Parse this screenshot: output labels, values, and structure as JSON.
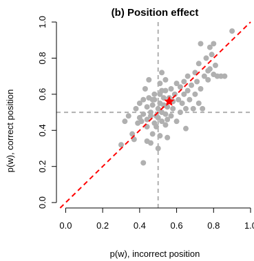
{
  "chart_data": {
    "type": "scatter",
    "title": "(b) Position effect",
    "xlabel": "p(w), incorrect position",
    "ylabel": "p(w), correct position",
    "xlim": [
      -0.05,
      1.0
    ],
    "ylim": [
      -0.03,
      1.0
    ],
    "xticks": [
      0.0,
      0.2,
      0.4,
      0.6,
      0.8,
      1.0
    ],
    "yticks": [
      0.0,
      0.2,
      0.4,
      0.6,
      0.8,
      1.0
    ],
    "xtick_labels": [
      "0.0",
      "0.2",
      "0.4",
      "0.6",
      "0.8",
      "1.0"
    ],
    "ytick_labels": [
      "0.0",
      "0.2",
      "0.4",
      "0.6",
      "0.8",
      "1.0"
    ],
    "grid": false,
    "reference_lines": {
      "identity_color": "#ff0000",
      "vertical_x": 0.5,
      "horizontal_y": 0.5,
      "guide_color": "#b0b0b0"
    },
    "mean_point": {
      "x": 0.56,
      "y": 0.56,
      "color": "#ff0000"
    },
    "point_color": "#b0b0b0",
    "points": [
      [
        0.3,
        0.32
      ],
      [
        0.32,
        0.45
      ],
      [
        0.34,
        0.48
      ],
      [
        0.36,
        0.38
      ],
      [
        0.37,
        0.35
      ],
      [
        0.38,
        0.52
      ],
      [
        0.39,
        0.44
      ],
      [
        0.4,
        0.47
      ],
      [
        0.4,
        0.55
      ],
      [
        0.41,
        0.45
      ],
      [
        0.42,
        0.22
      ],
      [
        0.42,
        0.49
      ],
      [
        0.42,
        0.57
      ],
      [
        0.43,
        0.63
      ],
      [
        0.44,
        0.34
      ],
      [
        0.44,
        0.42
      ],
      [
        0.44,
        0.46
      ],
      [
        0.44,
        0.53
      ],
      [
        0.45,
        0.58
      ],
      [
        0.45,
        0.68
      ],
      [
        0.46,
        0.33
      ],
      [
        0.46,
        0.48
      ],
      [
        0.46,
        0.5
      ],
      [
        0.47,
        0.38
      ],
      [
        0.47,
        0.54
      ],
      [
        0.47,
        0.57
      ],
      [
        0.48,
        0.44
      ],
      [
        0.48,
        0.57
      ],
      [
        0.48,
        0.6
      ],
      [
        0.49,
        0.42
      ],
      [
        0.49,
        0.48
      ],
      [
        0.5,
        0.3
      ],
      [
        0.5,
        0.47
      ],
      [
        0.5,
        0.52
      ],
      [
        0.51,
        0.37
      ],
      [
        0.51,
        0.55
      ],
      [
        0.51,
        0.6
      ],
      [
        0.51,
        0.66
      ],
      [
        0.52,
        0.45
      ],
      [
        0.52,
        0.5
      ],
      [
        0.52,
        0.62
      ],
      [
        0.52,
        0.72
      ],
      [
        0.53,
        0.54
      ],
      [
        0.53,
        0.58
      ],
      [
        0.54,
        0.43
      ],
      [
        0.54,
        0.49
      ],
      [
        0.54,
        0.62
      ],
      [
        0.54,
        0.68
      ],
      [
        0.55,
        0.36
      ],
      [
        0.55,
        0.46
      ],
      [
        0.55,
        0.53
      ],
      [
        0.56,
        0.58
      ],
      [
        0.57,
        0.48
      ],
      [
        0.57,
        0.63
      ],
      [
        0.58,
        0.52
      ],
      [
        0.58,
        0.56
      ],
      [
        0.59,
        0.6
      ],
      [
        0.6,
        0.45
      ],
      [
        0.6,
        0.66
      ],
      [
        0.61,
        0.57
      ],
      [
        0.62,
        0.5
      ],
      [
        0.62,
        0.64
      ],
      [
        0.63,
        0.55
      ],
      [
        0.64,
        0.6
      ],
      [
        0.64,
        0.67
      ],
      [
        0.65,
        0.41
      ],
      [
        0.65,
        0.52
      ],
      [
        0.66,
        0.62
      ],
      [
        0.66,
        0.7
      ],
      [
        0.67,
        0.57
      ],
      [
        0.68,
        0.65
      ],
      [
        0.69,
        0.52
      ],
      [
        0.7,
        0.6
      ],
      [
        0.7,
        0.72
      ],
      [
        0.71,
        0.67
      ],
      [
        0.72,
        0.55
      ],
      [
        0.72,
        0.77
      ],
      [
        0.73,
        0.63
      ],
      [
        0.73,
        0.88
      ],
      [
        0.74,
        0.52
      ],
      [
        0.75,
        0.7
      ],
      [
        0.76,
        0.8
      ],
      [
        0.77,
        0.73
      ],
      [
        0.77,
        0.68
      ],
      [
        0.78,
        0.86
      ],
      [
        0.78,
        0.74
      ],
      [
        0.79,
        0.82
      ],
      [
        0.8,
        0.71
      ],
      [
        0.8,
        0.88
      ],
      [
        0.81,
        0.76
      ],
      [
        0.82,
        0.7
      ],
      [
        0.84,
        0.7
      ],
      [
        0.86,
        0.7
      ],
      [
        0.9,
        0.95
      ]
    ]
  }
}
